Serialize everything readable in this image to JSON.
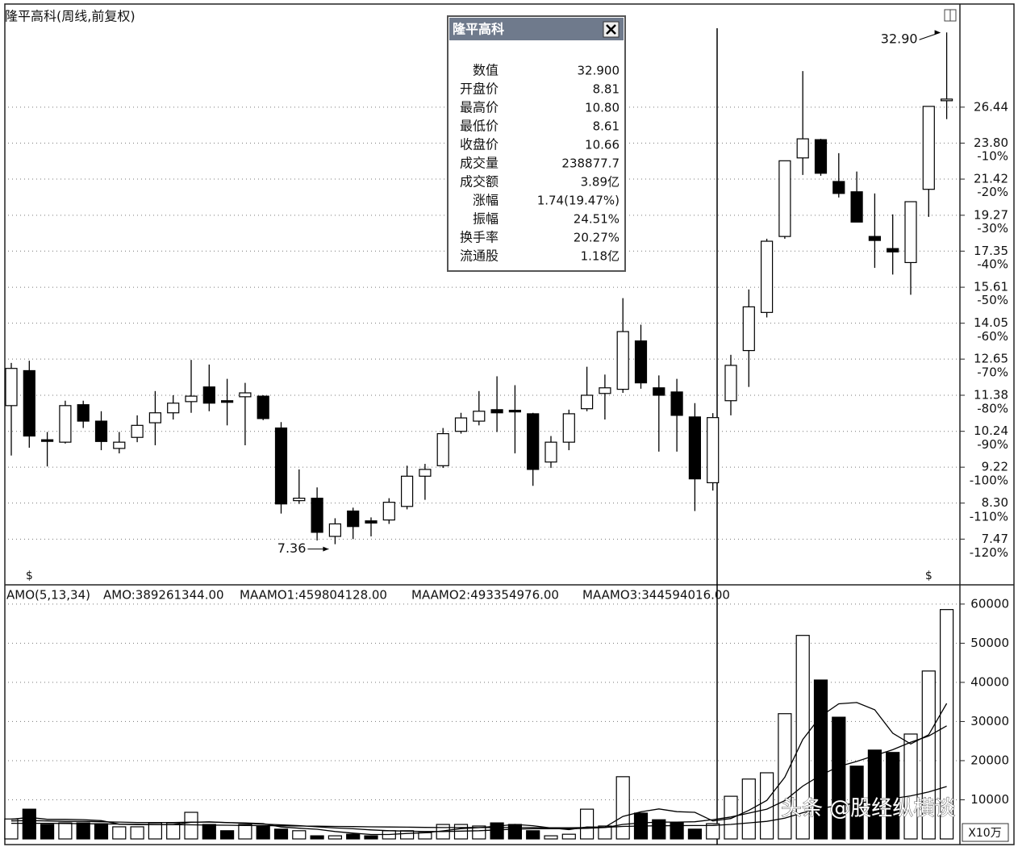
{
  "chart_data": [
    {
      "type": "candlestick",
      "title": "隆平高科(周线,前复权)",
      "log": true,
      "grid": true,
      "up_color": "#ffffff",
      "down_color": "#000000",
      "open": [
        11.04,
        12.23,
        9.99,
        9.92,
        11.07,
        10.55,
        9.74,
        10.06,
        10.5,
        10.81,
        11.17,
        11.66,
        11.2,
        11.33,
        11.35,
        10.34,
        8.36,
        8.42,
        7.53,
        8.11,
        7.88,
        7.9,
        8.22,
        8.98,
        9.26,
        10.24,
        10.55,
        10.91,
        10.89,
        10.78,
        9.36,
        9.92,
        10.94,
        11.44,
        11.58,
        13.34,
        11.63,
        11.49,
        10.68,
        8.81,
        11.2,
        12.97,
        14.5,
        18.11,
        22.79,
        24.04,
        21.27,
        20.64,
        18.11,
        17.48,
        16.78,
        20.79,
        27.0
      ],
      "high": [
        12.51,
        12.59,
        10.22,
        11.2,
        11.2,
        10.86,
        10.22,
        10.73,
        11.52,
        11.38,
        12.62,
        12.45,
        11.94,
        11.8,
        11.38,
        10.52,
        9.16,
        8.69,
        7.94,
        8.19,
        7.96,
        8.42,
        9.26,
        9.31,
        10.34,
        10.81,
        11.52,
        12.03,
        11.72,
        10.81,
        10.1,
        10.91,
        12.37,
        12.09,
        15.12,
        13.99,
        12.06,
        11.94,
        11.12,
        10.8,
        12.81,
        15.51,
        17.99,
        22.6,
        29.38,
        24.1,
        23.11,
        21.9,
        20.54,
        19.32,
        20.05,
        26.5,
        32.9
      ],
      "low": [
        9.54,
        9.76,
        9.24,
        9.88,
        10.34,
        9.69,
        9.6,
        9.92,
        9.83,
        10.6,
        10.81,
        10.86,
        10.42,
        9.83,
        10.58,
        8.05,
        8.28,
        7.44,
        7.36,
        7.47,
        7.53,
        7.81,
        8.15,
        8.38,
        9.2,
        10.17,
        10.42,
        10.22,
        9.6,
        8.73,
        9.2,
        9.69,
        10.86,
        10.6,
        11.46,
        11.6,
        9.65,
        9.65,
        8.11,
        8.61,
        10.73,
        11.66,
        14.29,
        17.99,
        21.68,
        21.63,
        20.3,
        18.89,
        16.52,
        16.2,
        15.27,
        19.18,
        25.53
      ],
      "close": [
        12.31,
        10.1,
        9.97,
        11.04,
        10.55,
        9.94,
        9.92,
        10.42,
        10.81,
        11.12,
        11.35,
        11.12,
        11.15,
        11.46,
        10.63,
        8.28,
        8.42,
        7.62,
        7.81,
        7.75,
        7.83,
        8.32,
        8.98,
        9.16,
        10.17,
        10.65,
        10.86,
        10.81,
        10.84,
        9.16,
        9.92,
        10.78,
        11.38,
        11.63,
        13.71,
        11.8,
        11.38,
        10.73,
        8.91,
        10.66,
        12.42,
        14.74,
        17.86,
        22.6,
        24.1,
        21.79,
        20.54,
        18.89,
        17.9,
        17.31,
        20.05,
        26.5,
        27.07
      ],
      "ylim": [
        6.55,
        35.5
      ],
      "yticks": [
        7.47,
        {
          "value": 8.3,
          "label": "8.30"
        },
        9.22,
        10.24,
        11.38,
        12.65,
        14.05,
        15.61,
        17.35,
        19.27,
        21.42,
        {
          "value": 23.8,
          "label": "23.80"
        },
        26.44
      ],
      "y2lim": [
        -128.6,
        31.6
      ],
      "y2ticks": [
        {
          "value": -10,
          "label": "-10%"
        },
        {
          "value": -20,
          "label": "-20%"
        },
        {
          "value": -30,
          "label": "-30%"
        },
        {
          "value": -40,
          "label": "-40%"
        },
        {
          "value": -50,
          "label": "-50%"
        },
        {
          "value": -60,
          "label": "-60%"
        },
        {
          "value": -70,
          "label": "-70%"
        },
        {
          "value": -80,
          "label": "-80%"
        },
        {
          "value": -90,
          "label": "-90%"
        },
        {
          "value": -100,
          "label": "-100%"
        },
        {
          "value": -110,
          "label": "-110%"
        },
        {
          "value": -120,
          "label": "-120%"
        }
      ],
      "annotations": [
        {
          "label": "32.90",
          "value": 32.9,
          "at": "high"
        },
        {
          "label": "7.36",
          "value": 7.36,
          "at": "low"
        }
      ],
      "event_markers": [
        {
          "label": "$",
          "x": 1
        },
        {
          "label": "$",
          "x": 51
        }
      ]
    },
    {
      "type": "bar",
      "title": "AMO(5,13,34)",
      "grid": true,
      "readouts": [
        "AMO:389261344.00",
        "MAAMO1:459804128.00",
        "MAAMO2:493354976.00",
        "MAAMO3:344594016.00"
      ],
      "unit": "X10万",
      "ylim": [
        0,
        64300
      ],
      "yticks": [
        10000,
        20000,
        30000,
        40000,
        50000,
        60000
      ],
      "series": [
        {
          "type": "bar",
          "values": [
            5100,
            7600,
            3700,
            4100,
            4100,
            3900,
            3100,
            3100,
            4100,
            4100,
            6800,
            3700,
            2100,
            3700,
            3300,
            2500,
            2100,
            800,
            800,
            1200,
            800,
            2100,
            2100,
            1600,
            3700,
            3700,
            3300,
            4100,
            3700,
            2100,
            800,
            1200,
            7600,
            3300,
            15900,
            6600,
            4900,
            4100,
            2500,
            3893,
            10900,
            15300,
            16900,
            32000,
            52000,
            40600,
            31100,
            18600,
            22700,
            22100,
            26800,
            42900,
            58600
          ]
        },
        {
          "type": "line",
          "color": "#000000",
          "values": [
            5000,
            5500,
            5000,
            5000,
            4920,
            4680,
            3780,
            3660,
            3660,
            3660,
            4240,
            4360,
            4160,
            4080,
            3920,
            3060,
            2740,
            2480,
            1900,
            1480,
            1140,
            1140,
            1400,
            1560,
            2060,
            2640,
            2880,
            3280,
            3700,
            3380,
            2800,
            2380,
            3080,
            3000,
            5760,
            6920,
            7660,
            6960,
            6800,
            4598,
            5220,
            7300,
            9860,
            15760,
            25420,
            31360,
            34520,
            34860,
            33000,
            27020,
            24260,
            26620,
            34620
          ]
        },
        {
          "type": "line",
          "color": "#000000",
          "values": [
            4600,
            4700,
            4600,
            4500,
            4500,
            4400,
            4300,
            4200,
            4200,
            4200,
            4300,
            4300,
            4200,
            4000,
            3800,
            3600,
            3400,
            3100,
            2800,
            2600,
            2300,
            2100,
            2000,
            1900,
            1900,
            2000,
            2100,
            2300,
            2500,
            2600,
            2600,
            2600,
            2700,
            2900,
            3700,
            4100,
            4300,
            4300,
            4400,
            4934,
            5600,
            6600,
            7600,
            9800,
            13500,
            16300,
            18500,
            19800,
            21300,
            22800,
            24700,
            26300,
            28900
          ]
        },
        {
          "type": "line",
          "color": "#000000",
          "values": [
            4000,
            4000,
            4000,
            3950,
            3900,
            3850,
            3800,
            3750,
            3700,
            3650,
            3600,
            3550,
            3500,
            3450,
            3400,
            3350,
            3300,
            3250,
            3200,
            3150,
            3100,
            3050,
            3000,
            2950,
            2900,
            2900,
            2900,
            2900,
            2900,
            2900,
            2850,
            2850,
            2900,
            2950,
            3200,
            3300,
            3350,
            3400,
            3420,
            3446,
            3700,
            4100,
            4500,
            5300,
            6700,
            7800,
            8600,
            9100,
            9700,
            10300,
            11000,
            12000,
            13400
          ]
        }
      ]
    }
  ],
  "popup": {
    "title": "隆平高科",
    "rows": [
      [
        "数值",
        "32.900"
      ],
      [
        "开盘价",
        "8.81"
      ],
      [
        "最高价",
        "10.80"
      ],
      [
        "最低价",
        "8.61"
      ],
      [
        "收盘价",
        "10.66"
      ],
      [
        "成交量",
        "238877.7"
      ],
      [
        "成交额",
        "3.89亿"
      ],
      [
        "涨幅",
        "1.74(19.47%)"
      ],
      [
        "振幅",
        "24.51%"
      ],
      [
        "换手率",
        "20.27%"
      ],
      [
        "流通股",
        "1.18亿"
      ]
    ]
  },
  "watermark": "头条 @股经纵横谈"
}
